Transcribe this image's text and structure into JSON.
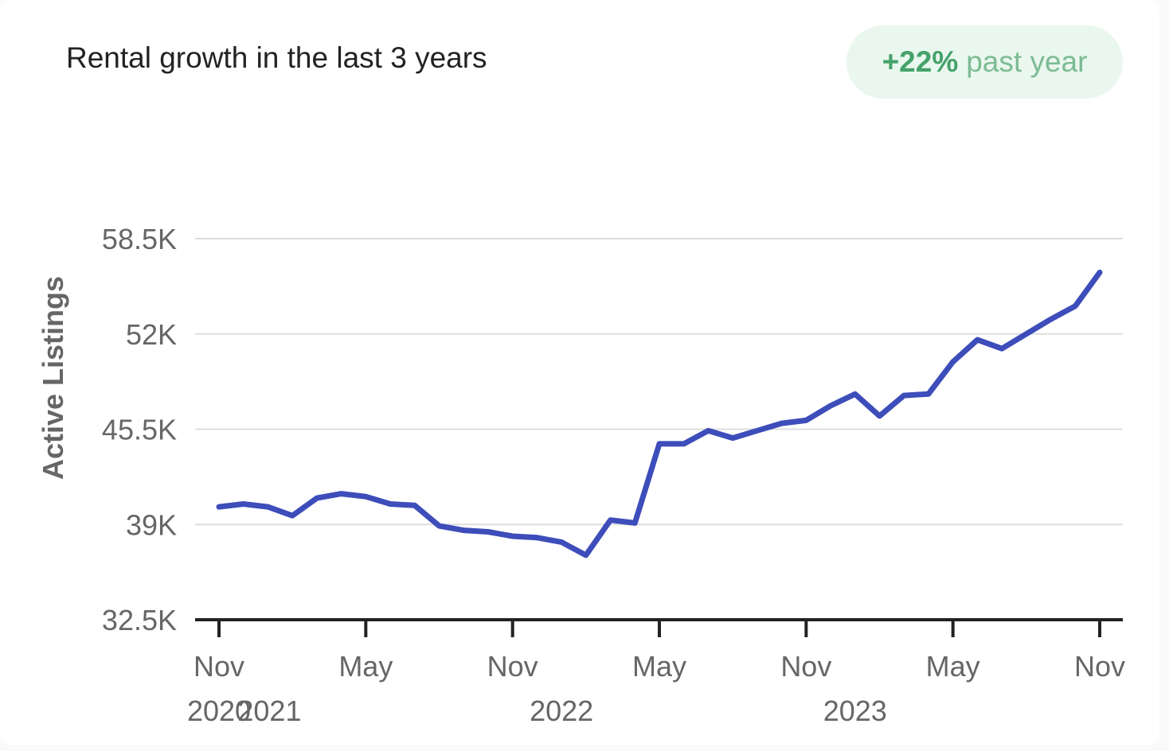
{
  "header": {
    "title": "Rental growth in the last 3 years",
    "badge_value": "+22%",
    "badge_text": "past year"
  },
  "colors": {
    "line": "#3d4dba",
    "badge_bg": "#e9f7ee",
    "badge_value": "#45a26a",
    "badge_text": "#7cbb93",
    "grid": "#dddddd",
    "axis": "#222222",
    "label": "#666666"
  },
  "chart_data": {
    "type": "line",
    "title": "",
    "xlabel": "",
    "ylabel": "Active Listings",
    "ylim": [
      32500,
      58500
    ],
    "yticks": [
      32500,
      39000,
      45500,
      52000,
      58500
    ],
    "ytick_labels": [
      "32.5K",
      "39K",
      "45.5K",
      "52K",
      "58.5K"
    ],
    "xlim": [
      "2020-11",
      "2023-11"
    ],
    "xticks": [
      {
        "date": "2020-11",
        "label": "Nov"
      },
      {
        "date": "2021-05",
        "label": "May"
      },
      {
        "date": "2021-11",
        "label": "Nov"
      },
      {
        "date": "2022-05",
        "label": "May"
      },
      {
        "date": "2022-11",
        "label": "Nov"
      },
      {
        "date": "2023-05",
        "label": "May"
      },
      {
        "date": "2023-11",
        "label": "Nov"
      }
    ],
    "year_labels": [
      {
        "date": "2020-11",
        "label": "2020"
      },
      {
        "date": "2021-01",
        "label": "2021"
      },
      {
        "date": "2022-01",
        "label": "2022"
      },
      {
        "date": "2023-01",
        "label": "2023"
      }
    ],
    "grid": true,
    "legend": "none",
    "series": [
      {
        "x": [
          "2020-11",
          "2020-12",
          "2021-01",
          "2021-02",
          "2021-03",
          "2021-04",
          "2021-05",
          "2021-06",
          "2021-07",
          "2021-08",
          "2021-09",
          "2021-10",
          "2021-11",
          "2021-12",
          "2022-01",
          "2022-02",
          "2022-03",
          "2022-04",
          "2022-05",
          "2022-06",
          "2022-07",
          "2022-08",
          "2022-09",
          "2022-10",
          "2022-11",
          "2022-12",
          "2023-01",
          "2023-02",
          "2023-03",
          "2023-04",
          "2023-05",
          "2023-06",
          "2023-07",
          "2023-08",
          "2023-09",
          "2023-10",
          "2023-11"
        ],
        "values": [
          40200,
          40400,
          40200,
          39600,
          40800,
          41100,
          40900,
          40400,
          40300,
          38900,
          38600,
          38500,
          38200,
          38100,
          37800,
          36900,
          39300,
          39100,
          44500,
          44500,
          45400,
          44900,
          45400,
          45900,
          46100,
          47100,
          47900,
          46400,
          47800,
          47900,
          50100,
          51600,
          51000,
          52000,
          53000,
          53900,
          56200
        ]
      }
    ]
  }
}
